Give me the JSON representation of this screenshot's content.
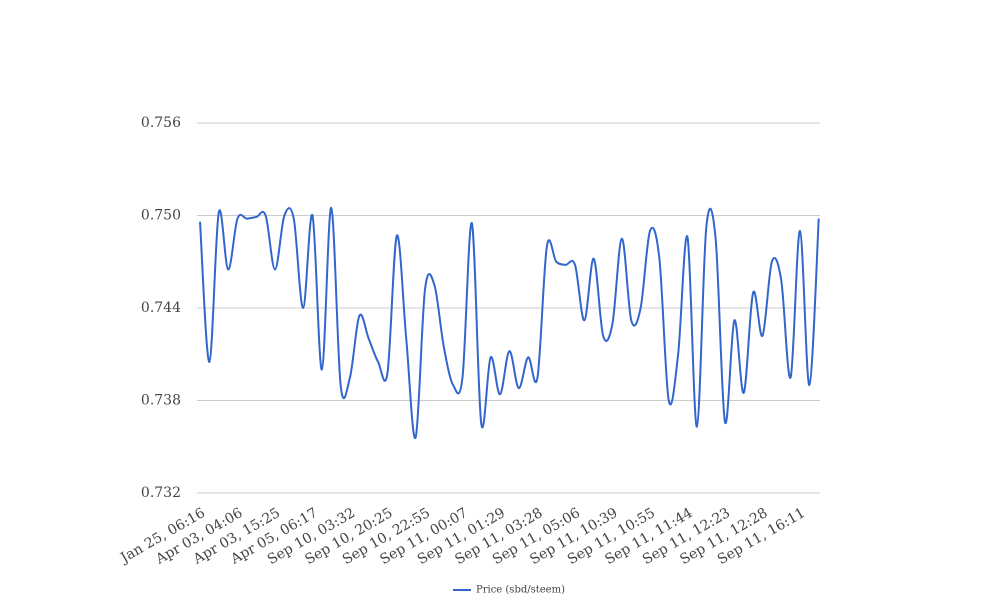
{
  "chart_data": {
    "type": "line",
    "categories": [
      "Jan 25, 06:16",
      null,
      null,
      null,
      "Apr 03, 04:06",
      null,
      null,
      null,
      "Apr 03, 15:25",
      null,
      null,
      null,
      "Apr 05, 06:17",
      null,
      null,
      null,
      "Sep 10, 03:32",
      null,
      null,
      null,
      "Sep 10, 20:25",
      null,
      null,
      null,
      "Sep 10, 22:55",
      null,
      null,
      null,
      "Sep 11, 00:07",
      null,
      null,
      null,
      "Sep 11, 01:29",
      null,
      null,
      null,
      "Sep 11, 03:28",
      null,
      null,
      null,
      "Sep 11, 05:06",
      null,
      null,
      null,
      "Sep 11, 10:39",
      null,
      null,
      null,
      "Sep 11, 10:55",
      null,
      null,
      null,
      "Sep 11, 11:44",
      null,
      null,
      null,
      "Sep 11, 12:23",
      null,
      null,
      null,
      "Sep 11, 12:28",
      null,
      null,
      null,
      "Sep 11, 16:11",
      null,
      null
    ],
    "series": [
      {
        "name": "Price (sbd/steem)",
        "color": "#3366cc",
        "values": [
          0.7496,
          0.7405,
          0.7502,
          0.7465,
          0.7498,
          0.7498,
          0.7499,
          0.75,
          0.7465,
          0.75,
          0.7498,
          0.744,
          0.75,
          0.74,
          0.7505,
          0.739,
          0.7395,
          0.7435,
          0.742,
          0.7405,
          0.7398,
          0.7487,
          0.742,
          0.7356,
          0.7452,
          0.7455,
          0.7415,
          0.739,
          0.7395,
          0.7495,
          0.7365,
          0.7408,
          0.7384,
          0.7412,
          0.7388,
          0.7408,
          0.7395,
          0.748,
          0.747,
          0.7468,
          0.7468,
          0.7432,
          0.7472,
          0.7422,
          0.743,
          0.7485,
          0.7432,
          0.744,
          0.749,
          0.7472,
          0.738,
          0.741,
          0.7486,
          0.7363,
          0.7492,
          0.7485,
          0.7366,
          0.7432,
          0.7385,
          0.745,
          0.7422,
          0.747,
          0.7458,
          0.7395,
          0.749,
          0.739,
          0.7498
        ]
      }
    ],
    "ylim": [
      0.732,
      0.756
    ],
    "yticks": [
      0.732,
      0.738,
      0.744,
      {
        "value": 0.75,
        "label": "0.750"
      },
      0.756
    ],
    "grid": true,
    "legend": "bottom"
  }
}
